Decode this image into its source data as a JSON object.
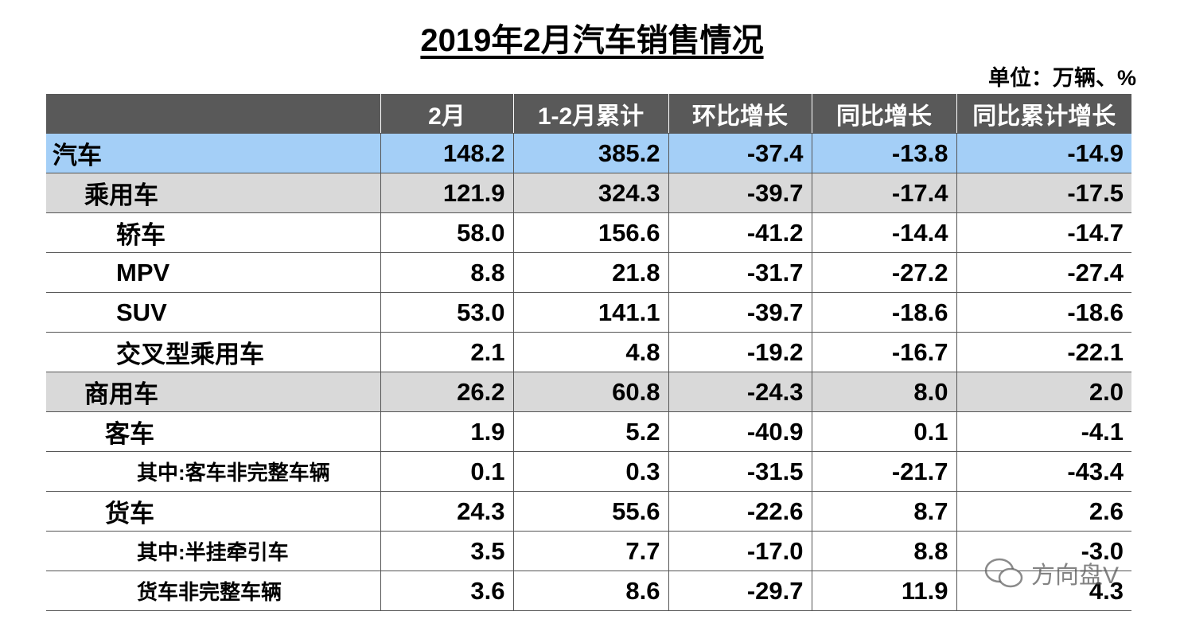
{
  "header": {
    "title": "2019年2月汽车销售情况",
    "unit": "单位：万辆、%"
  },
  "table": {
    "columns": [
      "2月",
      "1-2月累计",
      "环比增长",
      "同比增长",
      "同比累计增长"
    ],
    "rows": [
      [
        "汽车",
        "148.2",
        "385.2",
        "-37.4",
        "-13.8",
        "-14.9"
      ],
      [
        "乘用车",
        "121.9",
        "324.3",
        "-39.7",
        "-17.4",
        "-17.5"
      ],
      [
        "轿车",
        "58.0",
        "156.6",
        "-41.2",
        "-14.4",
        "-14.7"
      ],
      [
        "MPV",
        "8.8",
        "21.8",
        "-31.7",
        "-27.2",
        "-27.4"
      ],
      [
        "SUV",
        "53.0",
        "141.1",
        "-39.7",
        "-18.6",
        "-18.6"
      ],
      [
        "交叉型乘用车",
        "2.1",
        "4.8",
        "-19.2",
        "-16.7",
        "-22.1"
      ],
      [
        "商用车",
        "26.2",
        "60.8",
        "-24.3",
        "8.0",
        "2.0"
      ],
      [
        "客车",
        "1.9",
        "5.2",
        "-40.9",
        "0.1",
        "-4.1"
      ],
      [
        "其中:客车非完整车辆",
        "0.1",
        "0.3",
        "-31.5",
        "-21.7",
        "-43.4"
      ],
      [
        "货车",
        "24.3",
        "55.6",
        "-22.6",
        "8.7",
        "2.6"
      ],
      [
        "其中:半挂牵引车",
        "3.5",
        "7.7",
        "-17.0",
        "8.8",
        "-3.0"
      ],
      [
        "货车非完整车辆",
        "3.6",
        "8.6",
        "-29.7",
        "11.9",
        "4.3"
      ]
    ]
  },
  "watermark": "方向盘V"
}
